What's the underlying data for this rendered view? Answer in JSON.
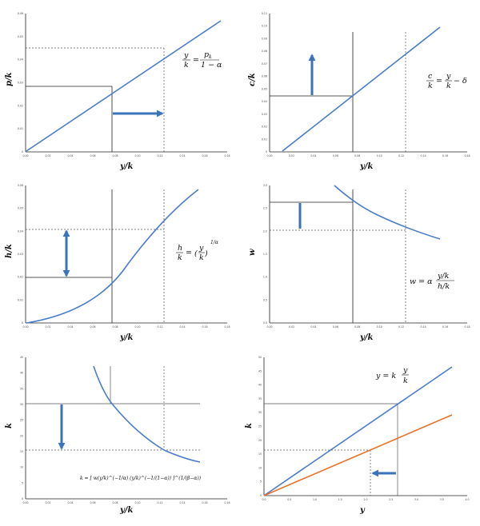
{
  "colors": {
    "curve": "#4a7cc9",
    "curve2": "#e8732a",
    "arrow": "#3a73b8",
    "axis": "#222222",
    "solid_guide": "#222222",
    "dashed_guide": "#555555"
  },
  "panels": [
    {
      "id": "tl",
      "xlabel": "y/k",
      "ylabel": "p/k",
      "equation": {
        "lhs_num": "y",
        "lhs_den": "k",
        "rhs_num": "p",
        "rhs_num_sub": "k",
        "rhs_den": "1 − α"
      },
      "x_ticks": [
        "0.00",
        "0.02",
        "0.04",
        "0.06",
        "0.08",
        "0.10",
        "0.12",
        "0.14",
        "0.16",
        "0.18"
      ],
      "y_ticks": [
        "0",
        "0.01",
        "0.02",
        "0.03",
        "0.04",
        "0.05",
        "0.06"
      ],
      "arrow_direction": "right"
    },
    {
      "id": "tr",
      "xlabel": "y/k",
      "ylabel": "c/k",
      "equation": {
        "lhs_num": "c",
        "lhs_den": "k",
        "rhs_num": "y",
        "rhs_den": "k",
        "rhs_tail": "− δ"
      },
      "x_ticks": [
        "0.00",
        "0.02",
        "0.04",
        "0.06",
        "0.08",
        "0.10",
        "0.12",
        "0.14",
        "0.16",
        "0.18"
      ],
      "y_ticks": [
        "0",
        "0.01",
        "0.02",
        "0.03",
        "0.04",
        "0.05",
        "0.06",
        "0.07",
        "0.08",
        "0.09",
        "0.10",
        "0.11"
      ],
      "arrow_direction": "up"
    },
    {
      "id": "ml",
      "xlabel": "y/k",
      "ylabel": "h/k",
      "equation": {
        "lhs_num": "h",
        "lhs_den": "k",
        "base_num": "y",
        "base_den": "k",
        "exponent": "1/α"
      },
      "x_ticks": [
        "0.00",
        "0.02",
        "0.04",
        "0.06",
        "0.08",
        "0.10",
        "0.12",
        "0.14",
        "0.16",
        "0.18"
      ],
      "y_ticks": [
        "0",
        "0.01",
        "0.02",
        "0.03",
        "0.04",
        "0.05",
        "0.06"
      ],
      "arrow_direction": "both"
    },
    {
      "id": "mr",
      "xlabel": "y/k",
      "ylabel": "w",
      "equation": {
        "lhs": "w = α",
        "num": "y/k",
        "den": "h/k"
      },
      "x_ticks": [
        "0.00",
        "0.02",
        "0.04",
        "0.06",
        "0.08",
        "0.10",
        "0.12",
        "0.14",
        "0.16",
        "0.18"
      ],
      "y_ticks": [
        "0.0",
        "0.5",
        "1.0",
        "1.5",
        "2.0",
        "2.5",
        "3.0"
      ],
      "arrow_direction": "down"
    },
    {
      "id": "bl",
      "xlabel": "y/k",
      "ylabel": "k",
      "equation": {
        "text": "k = [ w(y/k)^(−1/α) (y/k)^(−1/(1−α)) ]^(1/(β−α))"
      },
      "x_ticks": [
        "0.00",
        "0.02",
        "0.04",
        "0.06",
        "0.08",
        "0.10",
        "0.12",
        "0.14",
        "0.16",
        "0.18"
      ],
      "y_ticks": [
        "0",
        "5",
        "10",
        "15",
        "20",
        "25",
        "30",
        "35",
        "40",
        "45"
      ],
      "arrow_direction": "down"
    },
    {
      "id": "br",
      "xlabel": "y",
      "ylabel": "k",
      "equation": {
        "lhs": "y = k",
        "num": "y",
        "den": "k"
      },
      "x_ticks": [
        "0.0",
        "0.5",
        "1.0",
        "1.5",
        "2.0",
        "2.5",
        "3.0",
        "3.5",
        "4.0"
      ],
      "y_ticks": [
        "0",
        "5",
        "10",
        "15",
        "20",
        "25",
        "30",
        "35",
        "40",
        "45",
        "50"
      ],
      "arrow_direction": "left"
    }
  ]
}
